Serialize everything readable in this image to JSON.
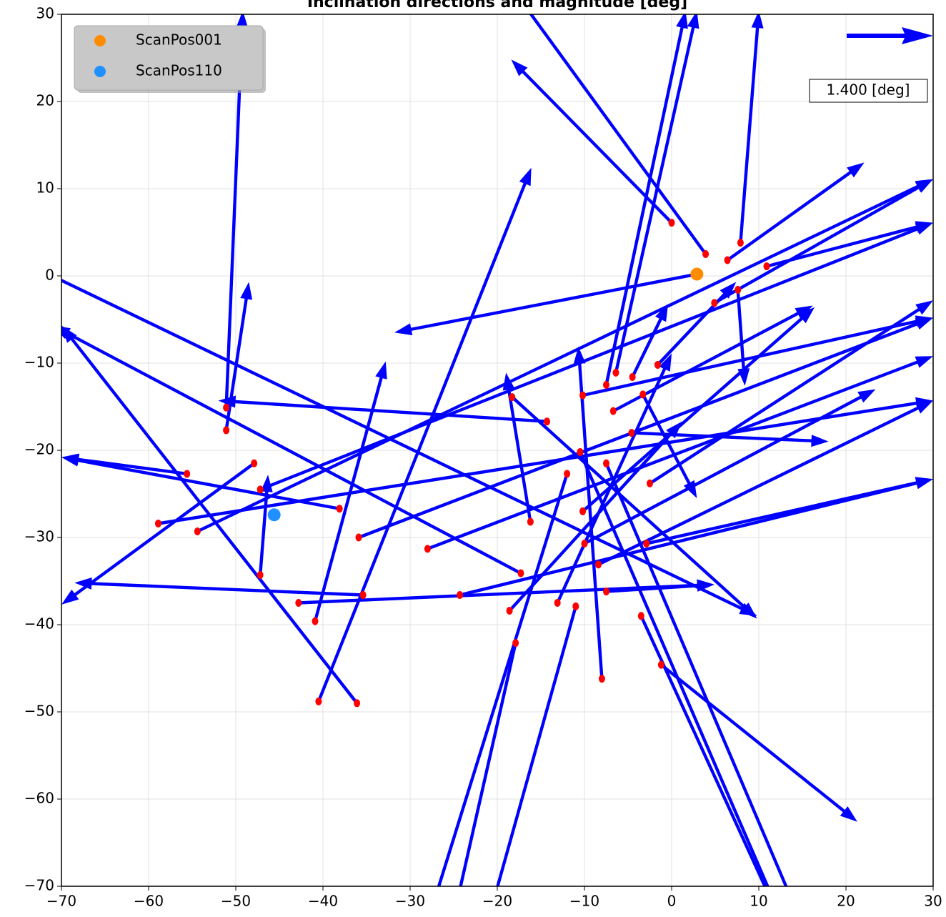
{
  "chart_data": {
    "type": "quiver",
    "title": "Inclination directions and magnitude [deg]",
    "xlim": [
      -70,
      30
    ],
    "ylim": [
      -70,
      30
    ],
    "xticks": [
      {
        "value": -70,
        "label": "−70"
      },
      {
        "value": -60,
        "label": "−60"
      },
      {
        "value": -50,
        "label": "−50"
      },
      {
        "value": -40,
        "label": "−40"
      },
      {
        "value": -30,
        "label": "−30"
      },
      {
        "value": -20,
        "label": "−20"
      },
      {
        "value": -10,
        "label": "−10"
      },
      0,
      10,
      20,
      30
    ],
    "yticks": [
      {
        "value": -70,
        "label": "−70"
      },
      {
        "value": -60,
        "label": "−60"
      },
      {
        "value": -50,
        "label": "−50"
      },
      {
        "value": -40,
        "label": "−40"
      },
      {
        "value": -30,
        "label": "−30"
      },
      {
        "value": -20,
        "label": "−20"
      },
      {
        "value": -10,
        "label": "−10"
      },
      0,
      10,
      20,
      30
    ],
    "grid": true,
    "legend": "upper left",
    "quiver": {
      "color": "#0000ff",
      "start_color": "#ff0000",
      "x": [
        0.0,
        3.9,
        7.9,
        6.4,
        10.9,
        4.9,
        7.6,
        -1.6,
        -4.5,
        -6.4,
        -7.5,
        -4.6,
        -3.3,
        -6.7,
        -8.0,
        -10.2,
        -16.2,
        -18.3,
        -14.3,
        -7.5,
        -10.5,
        -12.0,
        -10.2,
        -10.0,
        -8.4,
        -2.9,
        -2.5,
        -7.5,
        -13.1,
        -11.0,
        -17.9,
        -18.6,
        -17.3,
        -3.5,
        -1.2,
        -24.3,
        -28.0,
        -35.9,
        -35.4,
        -42.8,
        -40.9,
        -40.5,
        -36.1,
        -38.1,
        -47.2,
        -47.9,
        -55.6,
        -58.9,
        -54.4,
        -51.1,
        -51.1,
        -47.2,
        2.9,
        -72.1
      ],
      "y": [
        6.1,
        2.5,
        3.8,
        1.8,
        1.1,
        -3.1,
        -1.6,
        -10.2,
        -11.6,
        -11.1,
        -12.5,
        -18.0,
        -13.6,
        -15.5,
        -46.2,
        -13.7,
        -28.2,
        -13.9,
        -16.7,
        -21.5,
        -20.2,
        -22.7,
        -27.0,
        -30.7,
        -33.1,
        -30.7,
        -23.8,
        -36.2,
        -37.5,
        -37.9,
        -42.1,
        -38.4,
        -34.1,
        -39.0,
        -44.6,
        -36.6,
        -31.3,
        -30.0,
        -36.6,
        -37.5,
        -39.6,
        -48.8,
        -49.0,
        -26.7,
        -24.5,
        -21.5,
        -22.7,
        -28.4,
        -29.3,
        -15.1,
        -17.7,
        -34.3,
        0.2,
        0.5
      ],
      "u": [
        -18.4,
        -23.6,
        2.1,
        15.7,
        19.1,
        25.1,
        0.8,
        9.0,
        4.1,
        9.3,
        9.1,
        22.6,
        6.2,
        22.9,
        -2.7,
        40.2,
        -2.8,
        28.1,
        -37.7,
        21.9,
        22.8,
        -15.8,
        26.6,
        33.4,
        38.4,
        32.9,
        32.5,
        12.4,
        13.1,
        -9.8,
        -7.1,
        19.8,
        -53.7,
        15.8,
        22.5,
        54.3,
        58.0,
        65.9,
        -33.1,
        47.7,
        8.1,
        24.4,
        -33.9,
        -31.9,
        77.2,
        -22.1,
        -14.4,
        88.9,
        84.4,
        1.9,
        2.6,
        0.9,
        -34.7,
        81.9
      ],
      "v": [
        18.7,
        32.4,
        26.6,
        11.2,
        5.0,
        14.2,
        -11.0,
        9.5,
        8.4,
        41.5,
        42.9,
        -1.0,
        -11.9,
        12.1,
        38.1,
        8.9,
        17.1,
        -25.4,
        2.4,
        -51.5,
        -52.8,
        -50.8,
        23.4,
        17.7,
        18.8,
        7.4,
        21.0,
        0.8,
        28.6,
        -35.1,
        -31.4,
        21.7,
        28.4,
        -34.5,
        -18.0,
        13.3,
        22.1,
        25.2,
        1.4,
        2.1,
        29.8,
        61.2,
        43.3,
        5.9,
        30.6,
        -16.2,
        1.9,
        14.1,
        40.4,
        45.5,
        17.0,
        11.5,
        -6.7,
        -39.5
      ]
    },
    "series": [
      {
        "name": "ScanPos001",
        "color": "#ff8c00",
        "x": [
          2.9
        ],
        "y": [
          0.2
        ]
      },
      {
        "name": "ScanPos110",
        "color": "#1e90ff",
        "x": [
          -45.6
        ],
        "y": [
          -27.4
        ]
      }
    ],
    "key_label": "1.400 [deg]"
  }
}
